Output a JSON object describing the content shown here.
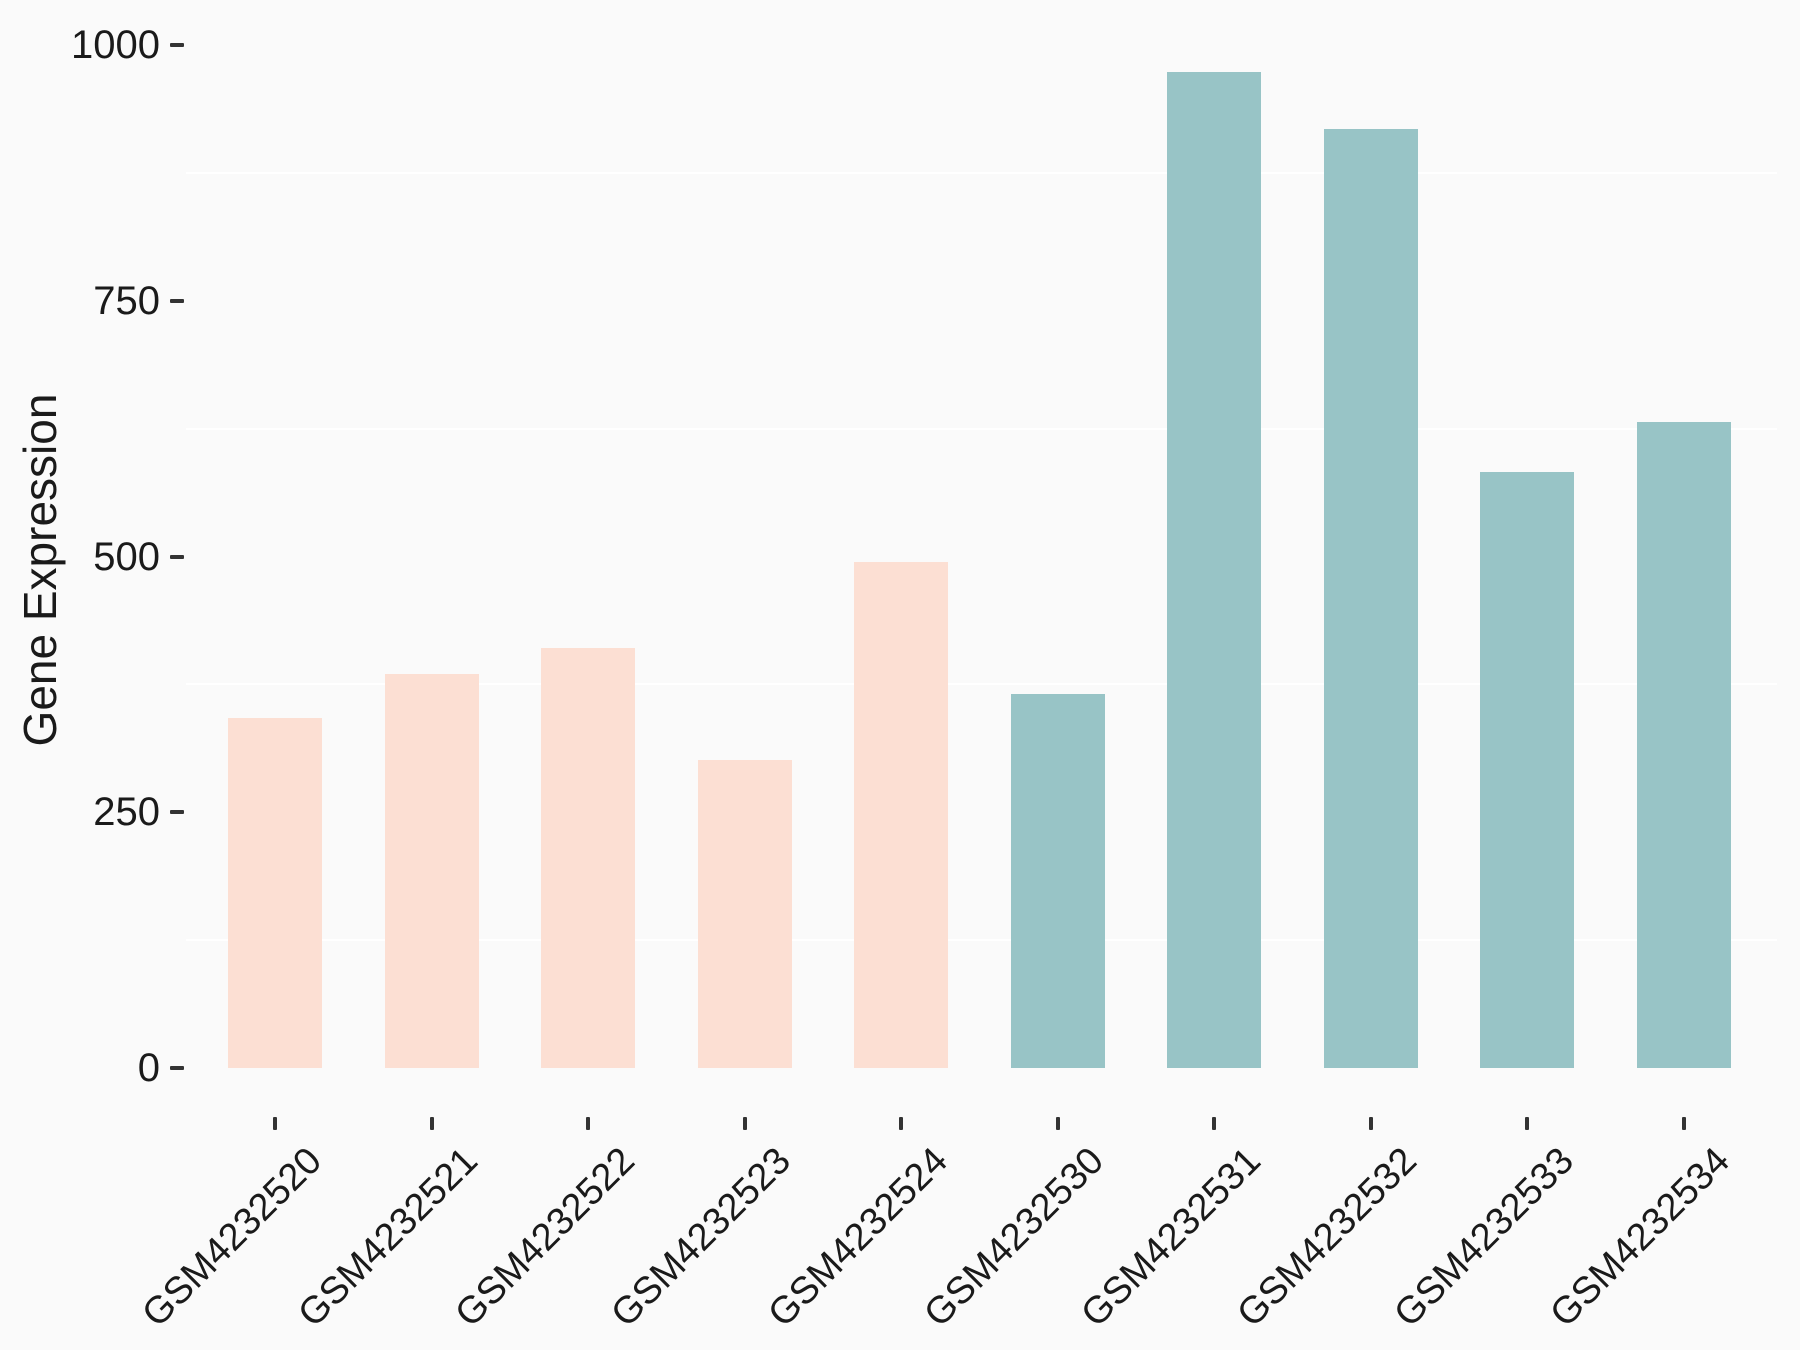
{
  "chart_data": {
    "type": "bar",
    "title": "",
    "xlabel": "",
    "ylabel": "Gene Expression",
    "categories": [
      "GSM4232520",
      "GSM4232521",
      "GSM4232522",
      "GSM4232523",
      "GSM4232524",
      "GSM4232530",
      "GSM4232531",
      "GSM4232532",
      "GSM4232533",
      "GSM4232534"
    ],
    "values": [
      342,
      385,
      411,
      301,
      495,
      366,
      974,
      918,
      583,
      632
    ],
    "bar_groups": [
      "group1",
      "group1",
      "group1",
      "group1",
      "group1",
      "group2",
      "group2",
      "group2",
      "group2",
      "group2"
    ],
    "group_colors": {
      "group1": "#FCDFD3",
      "group2": "#98C4C6"
    },
    "ylim": [
      0,
      1023
    ],
    "y_ticks": [
      0,
      250,
      500,
      750,
      1000
    ],
    "y_tick_labels": [
      "0",
      "250",
      "500",
      "750",
      "1000"
    ],
    "minor_gridlines": [
      125,
      375,
      625,
      875
    ],
    "grid": "minor-horizontal-only",
    "legend": "none",
    "background_color": "#FAFAFA",
    "gridline_color": "#FFFFFF",
    "tick_mark_color": "#333333",
    "text_color": "#1A1A1A"
  },
  "layout_note": "x labels rotated 45 degrees"
}
